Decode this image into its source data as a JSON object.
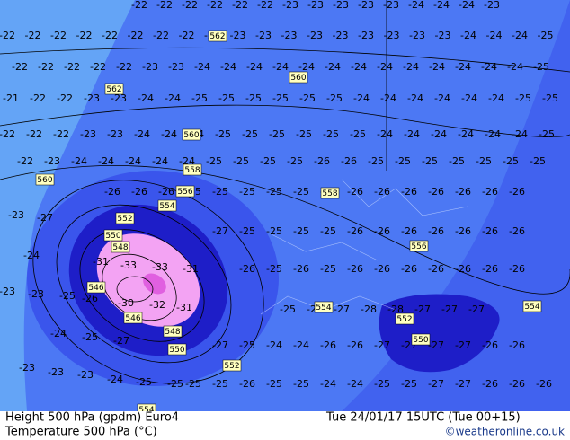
{
  "map": {
    "footer": {
      "left_line1": "Height 500 hPa (gpdm) Euro4",
      "left_line2": "Temperature 500 hPa (°C)",
      "time": "Tue 24/01/17 15UTC (Tue 00+15)",
      "credit": "©weatheronline.co.uk"
    },
    "height_labels": [
      "562",
      "562",
      "560",
      "560",
      "560",
      "558",
      "556",
      "558",
      "554",
      "552",
      "550",
      "548",
      "546",
      "546",
      "548",
      "550",
      "552",
      "556",
      "554",
      "554",
      "552",
      "550",
      "554"
    ],
    "temperature_rows": [
      [
        "-22",
        "-22",
        "-22",
        "-22",
        "-22",
        "-22",
        "-23",
        "-23",
        "-23",
        "-23",
        "-23",
        "-24",
        "-24",
        "-24",
        "-23"
      ],
      [
        "-22",
        "-22",
        "-22",
        "-22",
        "-22",
        "-22",
        "-22",
        "-22",
        "-23",
        "-23",
        "-23",
        "-23",
        "-23",
        "-23",
        "-23",
        "-23",
        "-23",
        "-23",
        "-24",
        "-24",
        "-24",
        "-25"
      ],
      [
        "-22",
        "-22",
        "-22",
        "-22",
        "-22",
        "-23",
        "-23",
        "-24",
        "-24",
        "-24",
        "-24",
        "-24",
        "-24",
        "-24",
        "-24",
        "-24",
        "-24",
        "-24",
        "-24",
        "-24",
        "-25"
      ],
      [
        "-21",
        "-22",
        "-22",
        "-23",
        "-23",
        "-24",
        "-24",
        "-25",
        "-25",
        "-25",
        "-25",
        "-25",
        "-25",
        "-24",
        "-24",
        "-24",
        "-24",
        "-24",
        "-24",
        "-25",
        "-25"
      ],
      [
        "-22",
        "-22",
        "-22",
        "-23",
        "-23",
        "-24",
        "-24",
        "-24",
        "-25",
        "-25",
        "-25",
        "-25",
        "-25",
        "-25",
        "-24",
        "-24",
        "-24",
        "-24",
        "-24",
        "-24",
        "-25"
      ],
      [
        "-22",
        "-23",
        "-24",
        "-24",
        "-24",
        "-24",
        "-24",
        "-25",
        "-25",
        "-25",
        "-25",
        "-26",
        "-26",
        "-25",
        "-25",
        "-25",
        "-25",
        "-25",
        "-25",
        "-25"
      ],
      [
        "-26",
        "-26",
        "-26",
        "-25",
        "-25",
        "-25",
        "-25",
        "-25",
        "-25",
        "-26",
        "-26",
        "-26",
        "-26",
        "-26",
        "-26",
        "-26"
      ],
      [
        "-27",
        "-25",
        "-25",
        "-25",
        "-25",
        "-26",
        "-26",
        "-26",
        "-26",
        "-26",
        "-26",
        "-26"
      ],
      [
        "-26",
        "-25",
        "-26",
        "-25",
        "-26",
        "-26",
        "-26",
        "-26",
        "-26",
        "-26",
        "-26"
      ],
      [
        "-25",
        "-25",
        "-27",
        "-28",
        "-28",
        "-27",
        "-27",
        "-27"
      ],
      [
        "-27",
        "-25",
        "-24",
        "-24",
        "-26",
        "-26",
        "-27",
        "-27",
        "-27",
        "-27",
        "-26",
        "-26"
      ],
      [
        "-25",
        "-25",
        "-26",
        "-25",
        "-25",
        "-24",
        "-24",
        "-25",
        "-25",
        "-27",
        "-27",
        "-26",
        "-26",
        "-26"
      ]
    ],
    "cyclone_labels": [
      "-31",
      "-33",
      "-33",
      "-31",
      "-30",
      "-32",
      "-31",
      "-25",
      "-26",
      "-24",
      "-23",
      "-27",
      "-23",
      "-23",
      "-24",
      "-25",
      "-27",
      "-23",
      "-23",
      "-23",
      "-24",
      "-25",
      "-25"
    ]
  }
}
